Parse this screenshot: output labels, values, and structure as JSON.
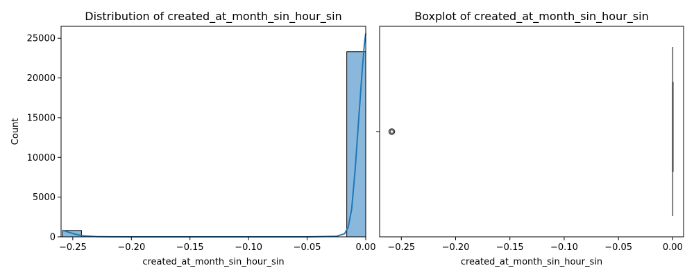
{
  "chart_data": [
    {
      "type": "histogram",
      "title": "Distribution of created_at_month_sin_hour_sin",
      "xlabel": "created_at_month_sin_hour_sin",
      "ylabel": "Count",
      "xlim": [
        -0.26,
        0.0
      ],
      "ylim": [
        0,
        26500
      ],
      "xticks": [
        -0.25,
        -0.2,
        -0.15,
        -0.1,
        -0.05,
        0.0
      ],
      "xtick_labels": [
        "−0.25",
        "−0.20",
        "−0.15",
        "−0.10",
        "−0.05",
        "0.00"
      ],
      "yticks": [
        0,
        5000,
        10000,
        15000,
        20000,
        25000
      ],
      "ytick_labels": [
        "0",
        "5000",
        "10000",
        "15000",
        "20000",
        "25000"
      ],
      "bins": [
        {
          "x0": -0.2588,
          "x1": -0.2426,
          "count": 800
        },
        {
          "x0": -0.0162,
          "x1": 0.0,
          "count": 23300
        }
      ],
      "kde": [
        [
          -0.2588,
          820
        ],
        [
          -0.255,
          650
        ],
        [
          -0.25,
          420
        ],
        [
          -0.245,
          230
        ],
        [
          -0.24,
          110
        ],
        [
          -0.23,
          30
        ],
        [
          -0.22,
          8
        ],
        [
          -0.2,
          2
        ],
        [
          -0.1,
          0
        ],
        [
          -0.05,
          0
        ],
        [
          -0.025,
          60
        ],
        [
          -0.018,
          400
        ],
        [
          -0.015,
          1200
        ],
        [
          -0.012,
          3500
        ],
        [
          -0.009,
          8500
        ],
        [
          -0.006,
          14800
        ],
        [
          -0.003,
          21000
        ],
        [
          -0.001,
          24500
        ],
        [
          0.0,
          25600
        ]
      ],
      "colors": {
        "bar_fill": "#89b8dc",
        "bar_edge": "#000000",
        "kde_line": "#1f77b4"
      }
    },
    {
      "type": "boxplot",
      "title": "Boxplot of created_at_month_sin_hour_sin",
      "xlabel": "created_at_month_sin_hour_sin",
      "xlim": [
        -0.27,
        0.01
      ],
      "xticks": [
        -0.25,
        -0.2,
        -0.15,
        -0.1,
        -0.05,
        0.0
      ],
      "xtick_labels": [
        "−0.25",
        "−0.20",
        "−0.15",
        "−0.10",
        "−0.05",
        "0.00"
      ],
      "box": {
        "q1": 0.0,
        "median": 0.0,
        "q3": 0.0,
        "whisker_low": 0.0,
        "whisker_high": 0.0
      },
      "outliers": [
        -0.2588
      ],
      "colors": {
        "box_line": "#555555",
        "outlier_edge": "#333333"
      }
    }
  ]
}
